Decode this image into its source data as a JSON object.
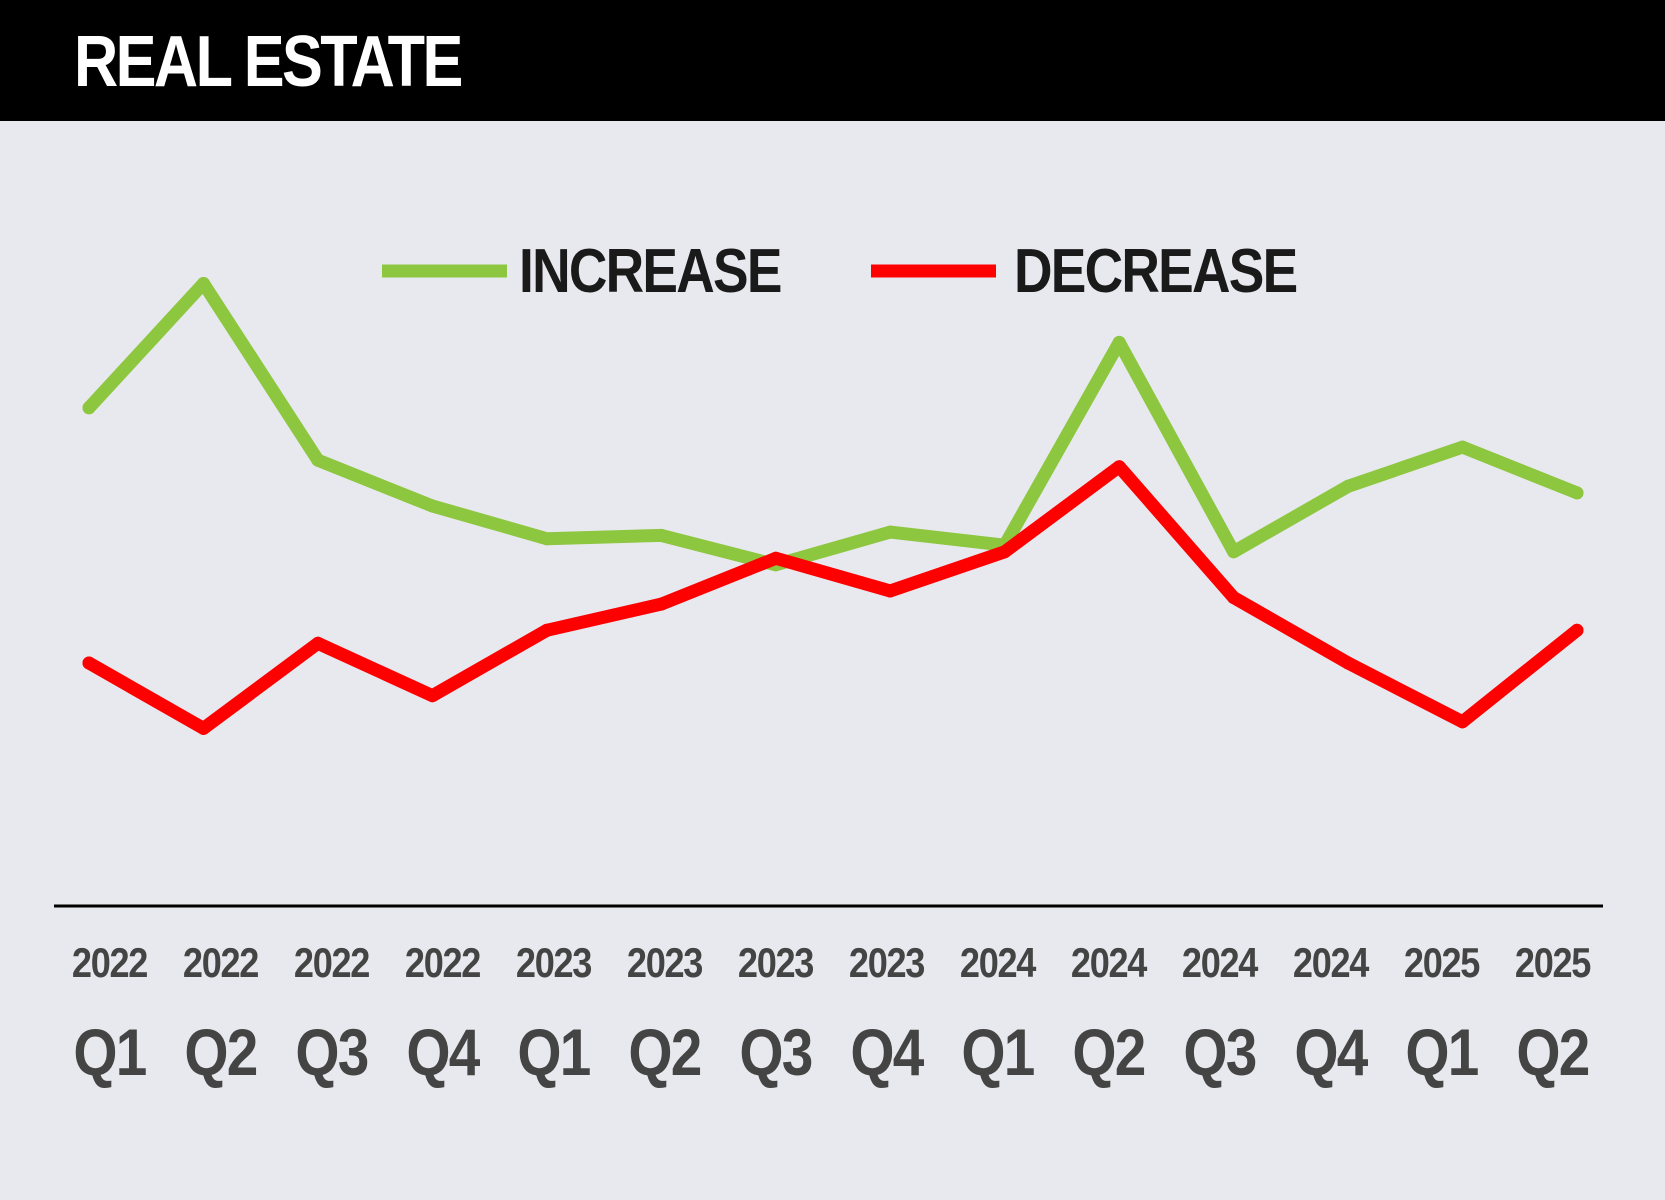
{
  "header": {
    "title": "REAL ESTATE"
  },
  "colors": {
    "increase": "#8dc63f",
    "decrease": "#ff0000",
    "header_bg": "#000000",
    "background": "#e8e9ee",
    "axis": "#000000",
    "tick_text": "#444444"
  },
  "chart_data": {
    "type": "line",
    "categories": [
      {
        "year": "2022",
        "quarter": "Q1"
      },
      {
        "year": "2022",
        "quarter": "Q2"
      },
      {
        "year": "2022",
        "quarter": "Q3"
      },
      {
        "year": "2022",
        "quarter": "Q4"
      },
      {
        "year": "2023",
        "quarter": "Q1"
      },
      {
        "year": "2023",
        "quarter": "Q2"
      },
      {
        "year": "2023",
        "quarter": "Q3"
      },
      {
        "year": "2023",
        "quarter": "Q4"
      },
      {
        "year": "2024",
        "quarter": "Q1"
      },
      {
        "year": "2024",
        "quarter": "Q2"
      },
      {
        "year": "2024",
        "quarter": "Q3"
      },
      {
        "year": "2024",
        "quarter": "Q4"
      },
      {
        "year": "2025",
        "quarter": "Q1"
      },
      {
        "year": "2025",
        "quarter": "Q2"
      }
    ],
    "series": [
      {
        "name": "INCREASE",
        "color": "#8dc63f",
        "values": [
          76,
          95,
          68,
          61,
          56,
          56.5,
          52,
          57,
          55,
          86,
          54,
          64,
          70,
          63
        ]
      },
      {
        "name": "DECREASE",
        "color": "#ff0000",
        "values": [
          37,
          27,
          40,
          32,
          42,
          46,
          53,
          48,
          54,
          67,
          47,
          37,
          28,
          42
        ]
      }
    ],
    "ylim": [
      0,
      120
    ],
    "grid": false,
    "legend_position": "top-center",
    "axes_values_shown": false
  }
}
